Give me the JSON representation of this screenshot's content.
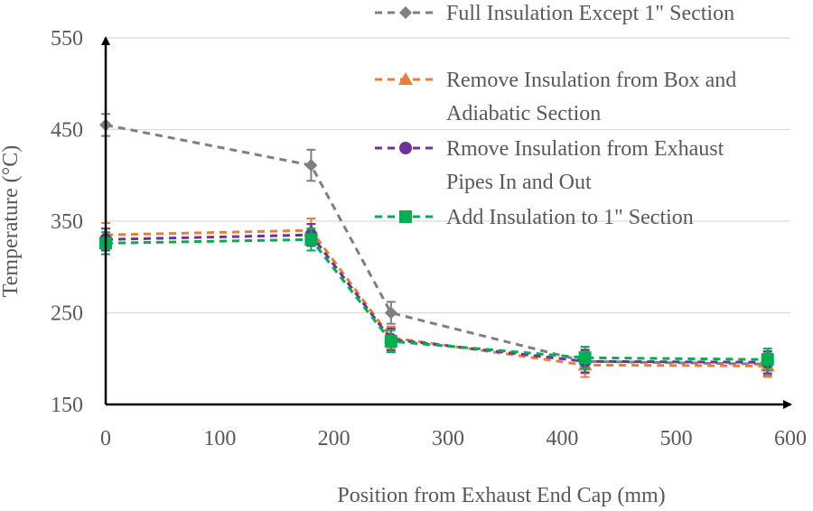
{
  "chart_data": {
    "type": "line",
    "title": "",
    "xlabel": "Position from Exhaust End Cap (mm)",
    "ylabel": "Temperature (°C)",
    "xlim": [
      0,
      600
    ],
    "ylim": [
      150,
      550
    ],
    "xticks": [
      0,
      100,
      200,
      300,
      400,
      500,
      600
    ],
    "yticks": [
      150,
      250,
      350,
      450,
      550
    ],
    "grid": "horizontal",
    "legend_position": "top-right",
    "series": [
      {
        "name": "Full Insulation Except 1\" Section",
        "legend_lines": [
          "Full Insulation Except 1\" Section"
        ],
        "color": "#7f7f7f",
        "marker": "diamond",
        "x": [
          0,
          180,
          250,
          420,
          580
        ],
        "y": [
          455,
          411,
          250,
          197,
          194
        ],
        "error": [
          12,
          17,
          12,
          13,
          12
        ]
      },
      {
        "name": "Remove Insulation from Box and Adiabatic Section",
        "legend_lines": [
          "Remove Insulation from Box and",
          "Adiabatic Section"
        ],
        "color": "#ed7d31",
        "marker": "triangle",
        "x": [
          0,
          180,
          250,
          420,
          580
        ],
        "y": [
          335,
          340,
          223,
          193,
          192
        ],
        "error": [
          13,
          13,
          12,
          13,
          12
        ]
      },
      {
        "name": "Rmove Insulation from Exhaust Pipes In and Out",
        "legend_lines": [
          "Rmove Insulation from Exhaust",
          "Pipes In and Out"
        ],
        "color": "#7030a0",
        "marker": "circle",
        "x": [
          0,
          180,
          250,
          420,
          580
        ],
        "y": [
          330,
          335,
          221,
          197,
          196
        ],
        "error": [
          12,
          12,
          12,
          12,
          12
        ]
      },
      {
        "name": "Add Insulation to 1\" Section",
        "legend_lines": [
          "Add Insulation to 1\" Section"
        ],
        "color": "#00b050",
        "marker": "square",
        "x": [
          0,
          180,
          250,
          420,
          580
        ],
        "y": [
          326,
          330,
          219,
          201,
          199
        ],
        "error": [
          12,
          12,
          12,
          12,
          12
        ]
      }
    ]
  }
}
